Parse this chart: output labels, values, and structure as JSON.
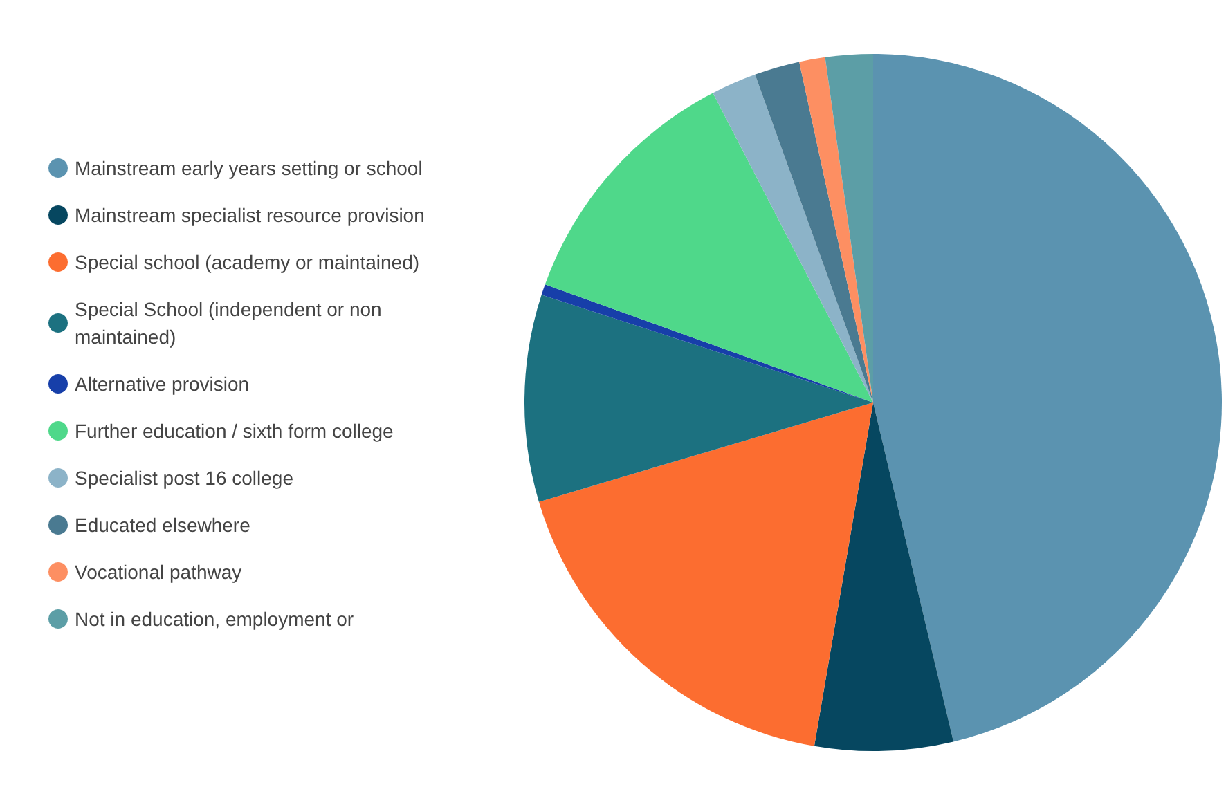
{
  "chart_data": {
    "type": "pie",
    "legend": "left",
    "categories": [
      "Mainstream early years setting or school",
      "Mainstream specialist resource provision",
      "Special school (academy or maintained)",
      "Special School (independent or non maintained)",
      "Alternative provision",
      "Further education / sixth form college",
      "Specialist post 16 college",
      "Educated elsewhere",
      "Vocational pathway",
      "Not in education, employment or"
    ],
    "values": [
      46.3,
      6.4,
      17.7,
      9.6,
      0.5,
      11.9,
      2.1,
      2.1,
      1.2,
      2.2
    ],
    "colors": [
      "#5b93b0",
      "#064760",
      "#fc6d30",
      "#1c7180",
      "#173fa9",
      "#4fd88a",
      "#8cb3c8",
      "#4a7a91",
      "#fd8f62",
      "#5c9ea6"
    ]
  }
}
